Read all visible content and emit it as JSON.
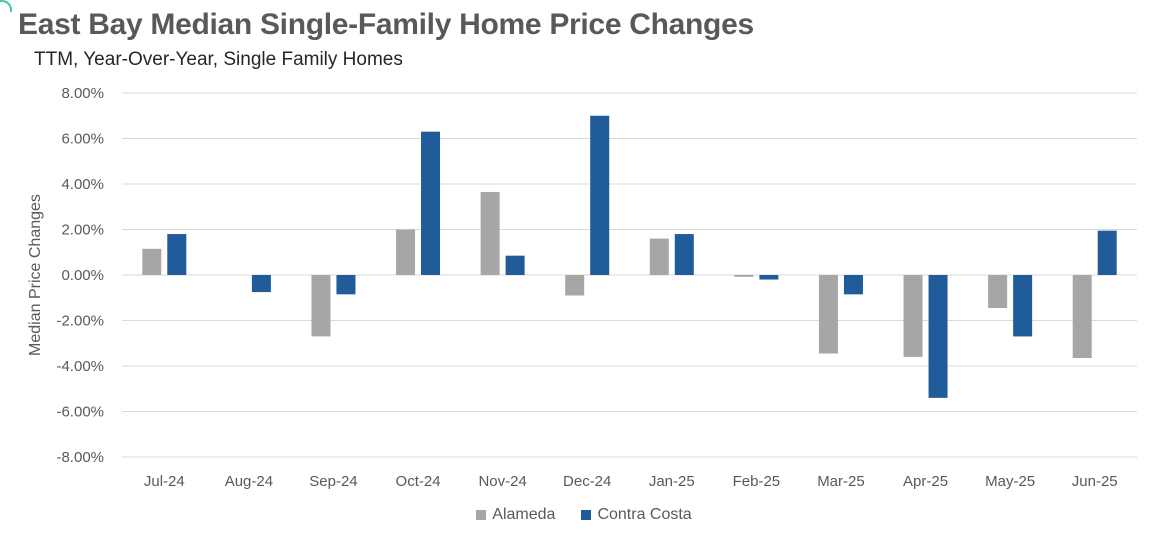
{
  "title": "East Bay Median Single-Family Home Price Changes",
  "subtitle": "TTM, Year-Over-Year, Single Family Homes",
  "chart_data": {
    "type": "bar",
    "categories": [
      "Jul-24",
      "Aug-24",
      "Sep-24",
      "Oct-24",
      "Nov-24",
      "Dec-24",
      "Jan-25",
      "Feb-25",
      "Mar-25",
      "Apr-25",
      "May-25",
      "Jun-25"
    ],
    "series": [
      {
        "name": "Alameda",
        "color": "#a6a6a6",
        "values": [
          1.15,
          0.0,
          -2.7,
          2.0,
          3.65,
          -0.9,
          1.6,
          -0.08,
          -3.45,
          -3.6,
          -1.45,
          -3.65
        ]
      },
      {
        "name": "Contra Costa",
        "color": "#1f5c99",
        "values": [
          1.8,
          -0.75,
          -0.85,
          6.3,
          0.85,
          7.0,
          1.8,
          -0.2,
          -0.85,
          -5.4,
          -2.7,
          1.95
        ]
      }
    ],
    "ylabel": "Median Price Changes",
    "xlabel": "",
    "ylim": [
      -8,
      8
    ],
    "yticks": [
      "8.00%",
      "6.00%",
      "4.00%",
      "2.00%",
      "0.00%",
      "-2.00%",
      "-4.00%",
      "-6.00%",
      "-8.00%"
    ],
    "grid": true,
    "legend_position": "bottom"
  }
}
